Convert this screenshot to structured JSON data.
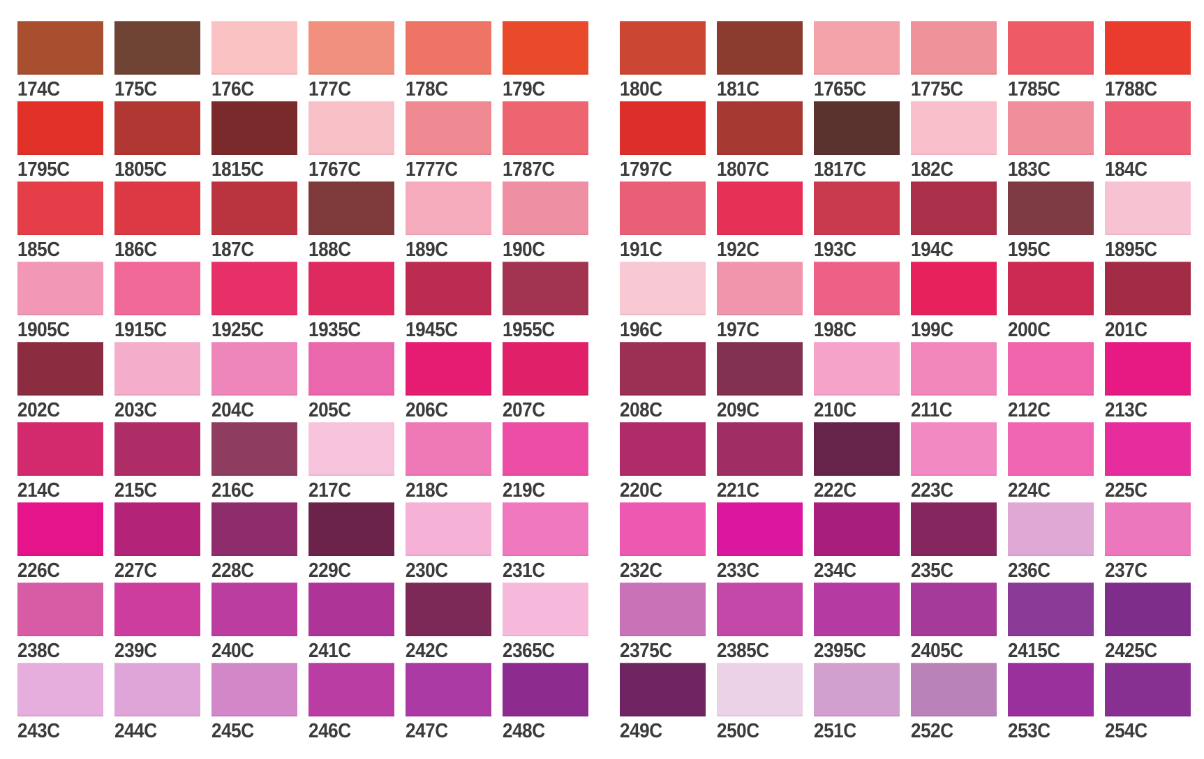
{
  "page": {
    "background_color": "#ffffff",
    "label_color": "#3b3b3c"
  },
  "chart_data": {
    "type": "table",
    "title": "",
    "layout": {
      "rows": 9,
      "columns_per_row": 12,
      "group_split": 6,
      "legend_position": "none",
      "grid": false
    },
    "rows": [
      [
        {
          "label": "174C",
          "color": "#A74F2E"
        },
        {
          "label": "175C",
          "color": "#6F4334"
        },
        {
          "label": "176C",
          "color": "#FBC2C4"
        },
        {
          "label": "177C",
          "color": "#F2907F"
        },
        {
          "label": "178C",
          "color": "#EE7466"
        },
        {
          "label": "179C",
          "color": "#E84A2A"
        },
        {
          "label": "180C",
          "color": "#CC4733"
        },
        {
          "label": "181C",
          "color": "#8B3C2E"
        },
        {
          "label": "1765C",
          "color": "#F4A3AA"
        },
        {
          "label": "1775C",
          "color": "#F0929A"
        },
        {
          "label": "1785C",
          "color": "#EE5A66"
        },
        {
          "label": "1788C",
          "color": "#E93C2F"
        }
      ],
      [
        {
          "label": "1795C",
          "color": "#E23128"
        },
        {
          "label": "1805C",
          "color": "#B13832"
        },
        {
          "label": "1815C",
          "color": "#7A2A2B"
        },
        {
          "label": "1767C",
          "color": "#F8C1C8"
        },
        {
          "label": "1777C",
          "color": "#EF8A93"
        },
        {
          "label": "1787C",
          "color": "#ED6571"
        },
        {
          "label": "1797C",
          "color": "#DC2F2B"
        },
        {
          "label": "1807C",
          "color": "#A63932"
        },
        {
          "label": "1817C",
          "color": "#5A332E"
        },
        {
          "label": "182C",
          "color": "#F9C0CB"
        },
        {
          "label": "183C",
          "color": "#F08F9C"
        },
        {
          "label": "184C",
          "color": "#ED5C72"
        }
      ],
      [
        {
          "label": "185C",
          "color": "#E63E48"
        },
        {
          "label": "186C",
          "color": "#DC3945"
        },
        {
          "label": "187C",
          "color": "#B9343F"
        },
        {
          "label": "188C",
          "color": "#7E393B"
        },
        {
          "label": "189C",
          "color": "#F5ABBC"
        },
        {
          "label": "190C",
          "color": "#EF8FA3"
        },
        {
          "label": "191C",
          "color": "#EA5F78"
        },
        {
          "label": "192C",
          "color": "#E73055"
        },
        {
          "label": "193C",
          "color": "#CA3A4F"
        },
        {
          "label": "194C",
          "color": "#A93048"
        },
        {
          "label": "195C",
          "color": "#7E3B43"
        },
        {
          "label": "1895C",
          "color": "#F7C2D1"
        }
      ],
      [
        {
          "label": "1905C",
          "color": "#F297B5"
        },
        {
          "label": "1915C",
          "color": "#EF6897"
        },
        {
          "label": "1925C",
          "color": "#E72F68"
        },
        {
          "label": "1935C",
          "color": "#DF2A5F"
        },
        {
          "label": "1945C",
          "color": "#BC2C52"
        },
        {
          "label": "1955C",
          "color": "#A23452"
        },
        {
          "label": "196C",
          "color": "#F8C8D3"
        },
        {
          "label": "197C",
          "color": "#F195AC"
        },
        {
          "label": "198C",
          "color": "#EE6187"
        },
        {
          "label": "199C",
          "color": "#E6215C"
        },
        {
          "label": "200C",
          "color": "#CC2A52"
        },
        {
          "label": "201C",
          "color": "#A22C46"
        }
      ],
      [
        {
          "label": "202C",
          "color": "#8C2C40"
        },
        {
          "label": "203C",
          "color": "#F4AECB"
        },
        {
          "label": "204C",
          "color": "#EE86BB"
        },
        {
          "label": "205C",
          "color": "#EB67AD"
        },
        {
          "label": "206C",
          "color": "#E61C72"
        },
        {
          "label": "207C",
          "color": "#E02069"
        },
        {
          "label": "208C",
          "color": "#9C3054"
        },
        {
          "label": "209C",
          "color": "#823250"
        },
        {
          "label": "210C",
          "color": "#F5A3C9"
        },
        {
          "label": "211C",
          "color": "#F287BB"
        },
        {
          "label": "212C",
          "color": "#EF64AB"
        },
        {
          "label": "213C",
          "color": "#E71A84"
        }
      ],
      [
        {
          "label": "214C",
          "color": "#D32A6E"
        },
        {
          "label": "215C",
          "color": "#AE2D66"
        },
        {
          "label": "216C",
          "color": "#8E3D60"
        },
        {
          "label": "217C",
          "color": "#F6C2DC"
        },
        {
          "label": "218C",
          "color": "#EF78B6"
        },
        {
          "label": "219C",
          "color": "#EB4EA4"
        },
        {
          "label": "220C",
          "color": "#B02B6A"
        },
        {
          "label": "221C",
          "color": "#9E2E63"
        },
        {
          "label": "222C",
          "color": "#67244A"
        },
        {
          "label": "223C",
          "color": "#F289C2"
        },
        {
          "label": "224C",
          "color": "#F066B3"
        },
        {
          "label": "225C",
          "color": "#E72D9E"
        }
      ],
      [
        {
          "label": "226C",
          "color": "#E6148A"
        },
        {
          "label": "227C",
          "color": "#B32478"
        },
        {
          "label": "228C",
          "color": "#8E2C6C"
        },
        {
          "label": "229C",
          "color": "#6B2349"
        },
        {
          "label": "230C",
          "color": "#F6B1D6"
        },
        {
          "label": "231C",
          "color": "#F078BF"
        },
        {
          "label": "232C",
          "color": "#ED58B1"
        },
        {
          "label": "233C",
          "color": "#DB17A0"
        },
        {
          "label": "234C",
          "color": "#A81E7C"
        },
        {
          "label": "235C",
          "color": "#85265E"
        },
        {
          "label": "236C",
          "color": "#E0A8D5"
        },
        {
          "label": "237C",
          "color": "#ED77BC"
        }
      ],
      [
        {
          "label": "238C",
          "color": "#D85BA5"
        },
        {
          "label": "239C",
          "color": "#CC3D9D"
        },
        {
          "label": "240C",
          "color": "#BB3D9F"
        },
        {
          "label": "241C",
          "color": "#AF3497"
        },
        {
          "label": "242C",
          "color": "#7C2957"
        },
        {
          "label": "2365C",
          "color": "#F6B9DC"
        },
        {
          "label": "2375C",
          "color": "#CA72B7"
        },
        {
          "label": "2385C",
          "color": "#C348A8"
        },
        {
          "label": "2395C",
          "color": "#B53AA2"
        },
        {
          "label": "2405C",
          "color": "#A63A9A"
        },
        {
          "label": "2415C",
          "color": "#8A3B97"
        },
        {
          "label": "2425C",
          "color": "#7F2D8A"
        }
      ],
      [
        {
          "label": "243C",
          "color": "#E5AEDD"
        },
        {
          "label": "244C",
          "color": "#DFA5D9"
        },
        {
          "label": "245C",
          "color": "#D287C8"
        },
        {
          "label": "246C",
          "color": "#B93DA3"
        },
        {
          "label": "247C",
          "color": "#AC3AA4"
        },
        {
          "label": "248C",
          "color": "#8E2B8E"
        },
        {
          "label": "249C",
          "color": "#6E2562"
        },
        {
          "label": "250C",
          "color": "#ECD2E7"
        },
        {
          "label": "251C",
          "color": "#D2A0CF"
        },
        {
          "label": "252C",
          "color": "#B983BA"
        },
        {
          "label": "253C",
          "color": "#9A309C"
        },
        {
          "label": "254C",
          "color": "#873092"
        }
      ]
    ]
  }
}
